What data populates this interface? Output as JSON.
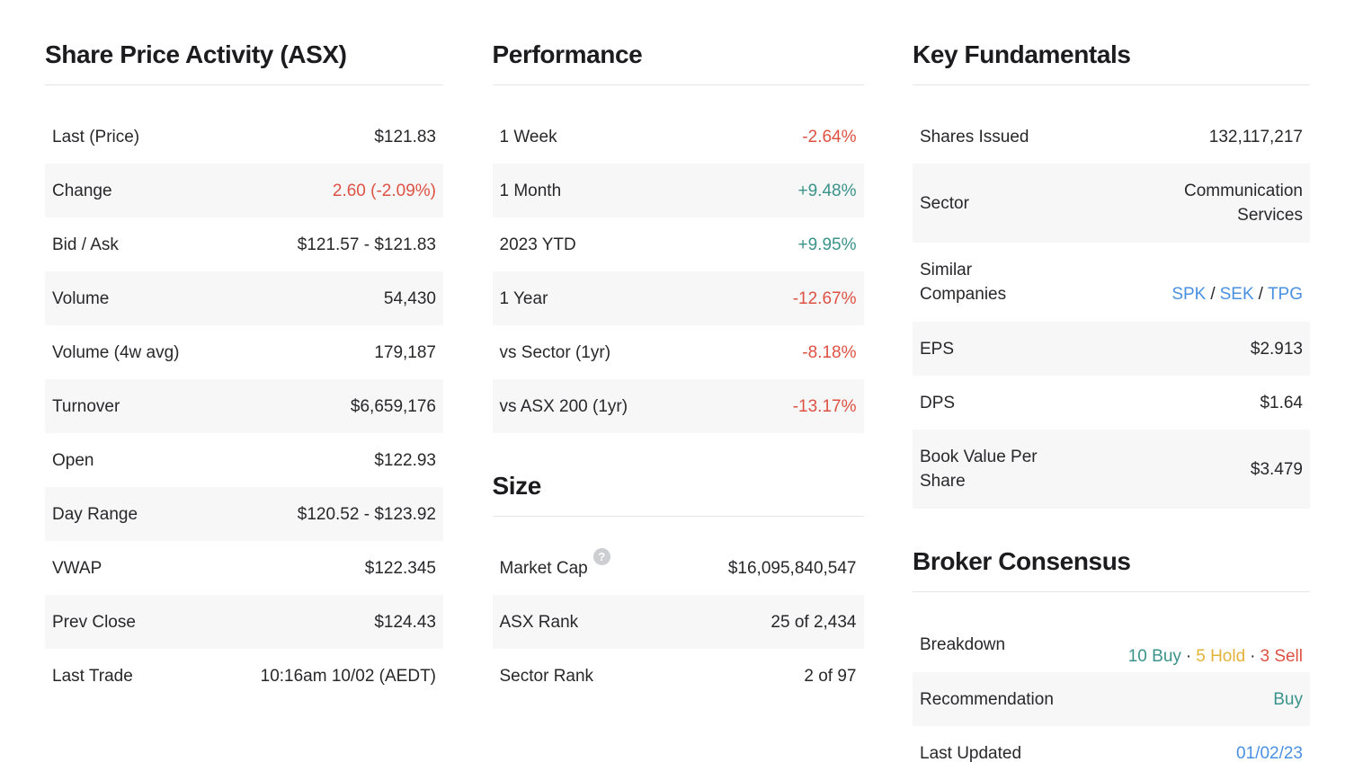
{
  "colors": {
    "negative_red": "#DE5243",
    "positive_teal": "#3A938A",
    "hold_yellow": "#E3B33A",
    "link_blue": "#4A90E2",
    "text_dark": "#28282B",
    "row_stripe": "#F7F7F8",
    "divider": "#E5E5E7"
  },
  "sections": {
    "share_price": {
      "title": "Share Price Activity (ASX)",
      "rows": [
        {
          "label": "Last (Price)",
          "value": "$121.83"
        },
        {
          "label": "Change",
          "value": "2.60 (-2.09%)"
        },
        {
          "label": "Bid / Ask",
          "value": "$121.57 - $121.83"
        },
        {
          "label": "Volume",
          "value": "54,430"
        },
        {
          "label": "Volume (4w avg)",
          "value": "179,187"
        },
        {
          "label": "Turnover",
          "value": "$6,659,176"
        },
        {
          "label": "Open",
          "value": "$122.93"
        },
        {
          "label": "Day Range",
          "value": "$120.52 - $123.92"
        },
        {
          "label": "VWAP",
          "value": "$122.345"
        },
        {
          "label": "Prev Close",
          "value": "$124.43"
        },
        {
          "label": "Last Trade",
          "value": "10:16am 10/02 (AEDT)"
        }
      ]
    },
    "performance": {
      "title": "Performance",
      "rows": [
        {
          "label": "1 Week",
          "value": "-2.64%"
        },
        {
          "label": "1 Month",
          "value": "+9.48%"
        },
        {
          "label": "2023 YTD",
          "value": "+9.95%"
        },
        {
          "label": "1 Year",
          "value": "-12.67%"
        },
        {
          "label": "vs Sector (1yr)",
          "value": "-8.18%"
        },
        {
          "label": "vs ASX 200 (1yr)",
          "value": "-13.17%"
        }
      ]
    },
    "size": {
      "title": "Size",
      "rows": [
        {
          "label": "Market Cap",
          "help_icon": "?",
          "value": "$16,095,840,547"
        },
        {
          "label": "ASX Rank",
          "value": "25 of 2,434"
        },
        {
          "label": "Sector Rank",
          "value": "2 of 97"
        }
      ]
    },
    "fundamentals": {
      "title": "Key Fundamentals",
      "rows": [
        {
          "label": "Shares Issued",
          "value": "132,117,217"
        },
        {
          "label": "Sector",
          "value": "Communication\nServices"
        },
        {
          "label": "Similar\nCompanies",
          "links": [
            "SPK",
            "SEK",
            "TPG"
          ],
          "separator": "/"
        },
        {
          "label": "EPS",
          "value": "$2.913"
        },
        {
          "label": "DPS",
          "value": "$1.64"
        },
        {
          "label": "Book Value Per\nShare",
          "value": "$3.479"
        }
      ]
    },
    "broker": {
      "title": "Broker Consensus",
      "rows": [
        {
          "label": "Breakdown",
          "buy": "10 Buy",
          "hold": "5 Hold",
          "sell": "3 Sell",
          "separator": "·"
        },
        {
          "label": "Recommendation",
          "value": "Buy"
        },
        {
          "label": "Last Updated",
          "value": "01/02/23"
        }
      ]
    }
  }
}
